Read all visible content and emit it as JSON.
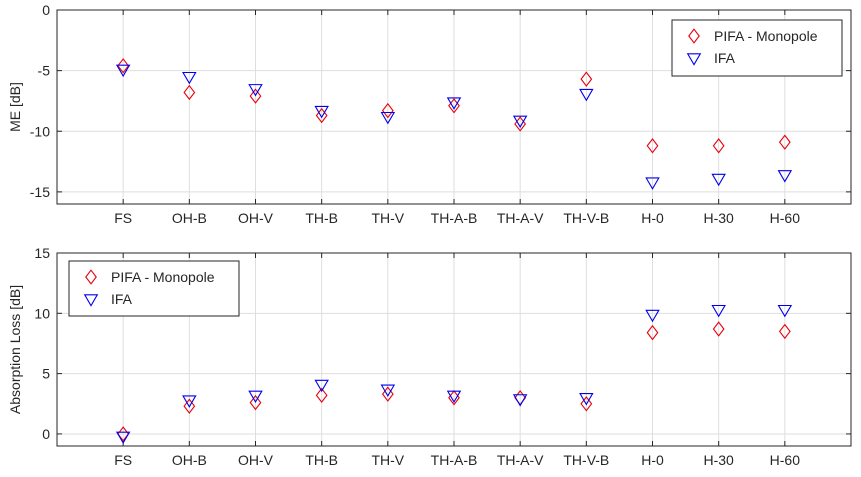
{
  "chart_data": [
    {
      "type": "scatter",
      "categories": [
        "FS",
        "OH-B",
        "OH-V",
        "TH-B",
        "TH-V",
        "TH-A-B",
        "TH-A-V",
        "TH-V-B",
        "H-0",
        "H-30",
        "H-60"
      ],
      "ylabel": "ME [dB]",
      "ylim": [
        -16,
        0
      ],
      "yticks": [
        "0",
        "-5",
        "-10",
        "-15"
      ],
      "ytick_values": [
        0,
        -5,
        -10,
        -15
      ],
      "grid": true,
      "legend_position": "top-right",
      "series": [
        {
          "name": "PIFA - Monopole",
          "marker": "diamond",
          "color": "#e8000b",
          "values": [
            -4.6,
            -6.8,
            -7.1,
            -8.7,
            -8.3,
            -7.9,
            -9.4,
            -5.7,
            -11.2,
            -11.2,
            -10.9
          ]
        },
        {
          "name": "IFA",
          "marker": "triangle-down",
          "color": "#0000ee",
          "values": [
            -4.9,
            -5.5,
            -6.5,
            -8.3,
            -8.8,
            -7.6,
            -9.1,
            -6.9,
            -14.2,
            -13.9,
            -13.6
          ]
        }
      ]
    },
    {
      "type": "scatter",
      "categories": [
        "FS",
        "OH-B",
        "OH-V",
        "TH-B",
        "TH-V",
        "TH-A-B",
        "TH-A-V",
        "TH-V-B",
        "H-0",
        "H-30",
        "H-60"
      ],
      "ylabel": "Absorption Loss [dB]",
      "ylim": [
        -1,
        15
      ],
      "yticks": [
        "0",
        "5",
        "10",
        "15"
      ],
      "ytick_values": [
        0,
        5,
        10,
        15
      ],
      "grid": true,
      "legend_position": "top-left",
      "series": [
        {
          "name": "PIFA - Monopole",
          "marker": "diamond",
          "color": "#e8000b",
          "values": [
            0.0,
            2.3,
            2.6,
            3.2,
            3.3,
            3.0,
            3.0,
            2.5,
            8.4,
            8.7,
            8.5
          ]
        },
        {
          "name": "IFA",
          "marker": "triangle-down",
          "color": "#0000ee",
          "values": [
            -0.2,
            2.8,
            3.2,
            4.1,
            3.7,
            3.2,
            2.9,
            3.0,
            9.9,
            10.3,
            10.3
          ]
        }
      ]
    }
  ]
}
